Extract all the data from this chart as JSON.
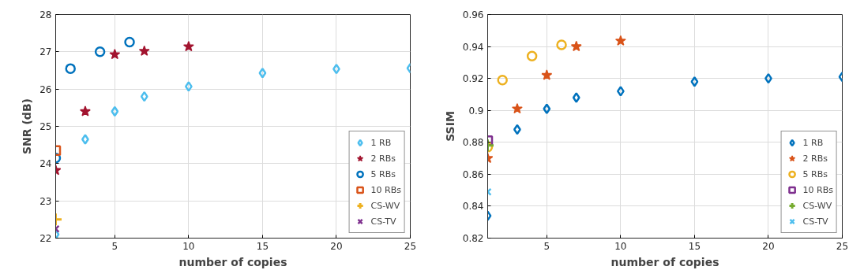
{
  "chart_data": [
    {
      "type": "scatter",
      "xlabel": "number of copies",
      "ylabel": "SNR (dB)",
      "xlim": [
        1,
        25
      ],
      "ylim": [
        22,
        28
      ],
      "xticks": [
        5,
        10,
        15,
        20,
        25
      ],
      "yticks": [
        22,
        23,
        24,
        25,
        26,
        27,
        28
      ],
      "grid": true,
      "legend": "bottom right",
      "series": [
        {
          "name": "1 RB",
          "color": "#4dbeee",
          "marker": "diamond",
          "x": [
            1,
            3,
            5,
            7,
            10,
            15,
            20,
            25
          ],
          "values": [
            22.1,
            24.65,
            25.4,
            25.8,
            26.07,
            26.43,
            26.54,
            26.56
          ]
        },
        {
          "name": "2 RBs",
          "color": "#a2142f",
          "marker": "star",
          "x": [
            1,
            3,
            5,
            7,
            10
          ],
          "values": [
            23.82,
            25.4,
            26.93,
            27.02,
            27.14
          ]
        },
        {
          "name": "5 RBs",
          "color": "#0072bd",
          "marker": "circle",
          "x": [
            1,
            2,
            4,
            6
          ],
          "values": [
            24.15,
            26.55,
            27.0,
            27.26
          ]
        },
        {
          "name": "10 RBs",
          "color": "#d95319",
          "marker": "square",
          "x": [
            1
          ],
          "values": [
            24.35
          ]
        },
        {
          "name": "CS-WV",
          "color": "#edb120",
          "marker": "cross",
          "x": [
            1
          ],
          "values": [
            22.5
          ]
        },
        {
          "name": "CS-TV",
          "color": "#7e2f8e",
          "marker": "x",
          "x": [
            1
          ],
          "values": [
            22.25
          ]
        }
      ]
    },
    {
      "type": "scatter",
      "xlabel": "number of copies",
      "ylabel": "SSIM",
      "xlim": [
        1,
        25
      ],
      "ylim": [
        0.82,
        0.96
      ],
      "xticks": [
        5,
        10,
        15,
        20,
        25
      ],
      "yticks": [
        {
          "value": 0.82,
          "label": "0.82"
        },
        {
          "value": 0.84,
          "label": "0.84"
        },
        {
          "value": 0.86,
          "label": "0.86"
        },
        {
          "value": 0.88,
          "label": "0.88"
        },
        {
          "value": 0.9,
          "label": "0.9"
        },
        {
          "value": 0.92,
          "label": "0.92"
        },
        {
          "value": 0.94,
          "label": "0.94"
        },
        {
          "value": 0.96,
          "label": "0.96"
        }
      ],
      "grid": true,
      "legend": "bottom right",
      "series": [
        {
          "name": "1 RB",
          "color": "#0072bd",
          "marker": "diamond",
          "x": [
            1,
            3,
            5,
            7,
            10,
            15,
            20,
            25
          ],
          "values": [
            0.834,
            0.888,
            0.901,
            0.908,
            0.912,
            0.918,
            0.92,
            0.921
          ]
        },
        {
          "name": "2 RBs",
          "color": "#d95319",
          "marker": "star",
          "x": [
            1,
            3,
            5,
            7,
            10
          ],
          "values": [
            0.87,
            0.901,
            0.922,
            0.94,
            0.9435
          ]
        },
        {
          "name": "5 RBs",
          "color": "#edb120",
          "marker": "circle",
          "x": [
            1,
            2,
            4,
            6
          ],
          "values": [
            0.877,
            0.919,
            0.934,
            0.941
          ]
        },
        {
          "name": "10 RBs",
          "color": "#7e2f8e",
          "marker": "square",
          "x": [
            1
          ],
          "values": [
            0.881
          ]
        },
        {
          "name": "CS-WV",
          "color": "#77ac30",
          "marker": "cross",
          "x": [
            1
          ],
          "values": [
            0.878
          ]
        },
        {
          "name": "CS-TV",
          "color": "#4dbeee",
          "marker": "x",
          "x": [
            1
          ],
          "values": [
            0.849
          ]
        }
      ]
    }
  ]
}
